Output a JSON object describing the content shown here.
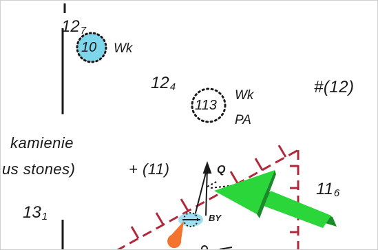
{
  "chart": {
    "colors": {
      "background": "#ffffff",
      "ink": "#1a1a1a",
      "shoal_fill": "#7ed6ea",
      "boundary": "#b0283a",
      "arrow": "#2bd63a",
      "buoy": "#f2742e"
    },
    "soundings": [
      {
        "id": "s12-7",
        "whole": "12",
        "sub": "7"
      },
      {
        "id": "s12-4",
        "whole": "12",
        "sub": "4"
      },
      {
        "id": "s13-1",
        "whole": "13",
        "sub": "1"
      },
      {
        "id": "s11-6",
        "whole": "11",
        "sub": "6"
      }
    ],
    "dangers": [
      {
        "id": "wreck-10",
        "depth": "10",
        "label": "Wk",
        "highlighted": true
      },
      {
        "id": "wreck-113",
        "depth": "113",
        "label": "Wk",
        "extra": "PA",
        "highlighted": false
      }
    ],
    "rock_notes": [
      {
        "id": "rock-12",
        "text": "#(12)"
      },
      {
        "id": "rock-11",
        "text": "+ (11)"
      }
    ],
    "text_labels": {
      "kamienie": "kamienie",
      "stones": "us stones)"
    },
    "light": {
      "mark": "Q",
      "buoy_label": "BY"
    },
    "icons": [
      "wreck-circle",
      "light-flare",
      "buoy",
      "pointer-arrow"
    ]
  }
}
